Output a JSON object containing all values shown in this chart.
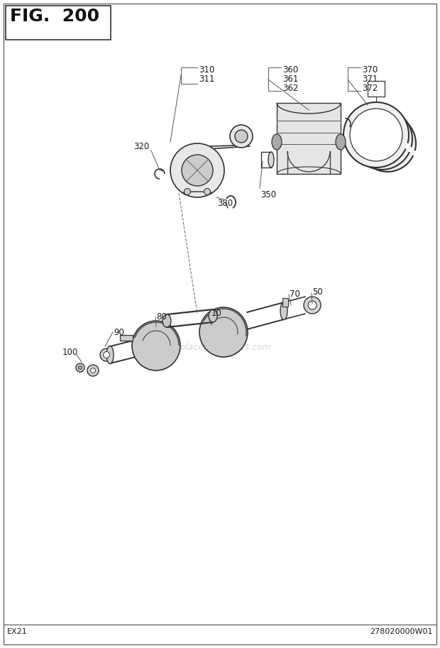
{
  "title": "FIG. 200",
  "bg_color": "#ffffff",
  "text_color": "#000000",
  "fig_width": 6.2,
  "fig_height": 9.13,
  "dpi": 100,
  "footer_left": "EX21",
  "footer_right": "278020000W01",
  "watermark": "ReplacementParts.com"
}
